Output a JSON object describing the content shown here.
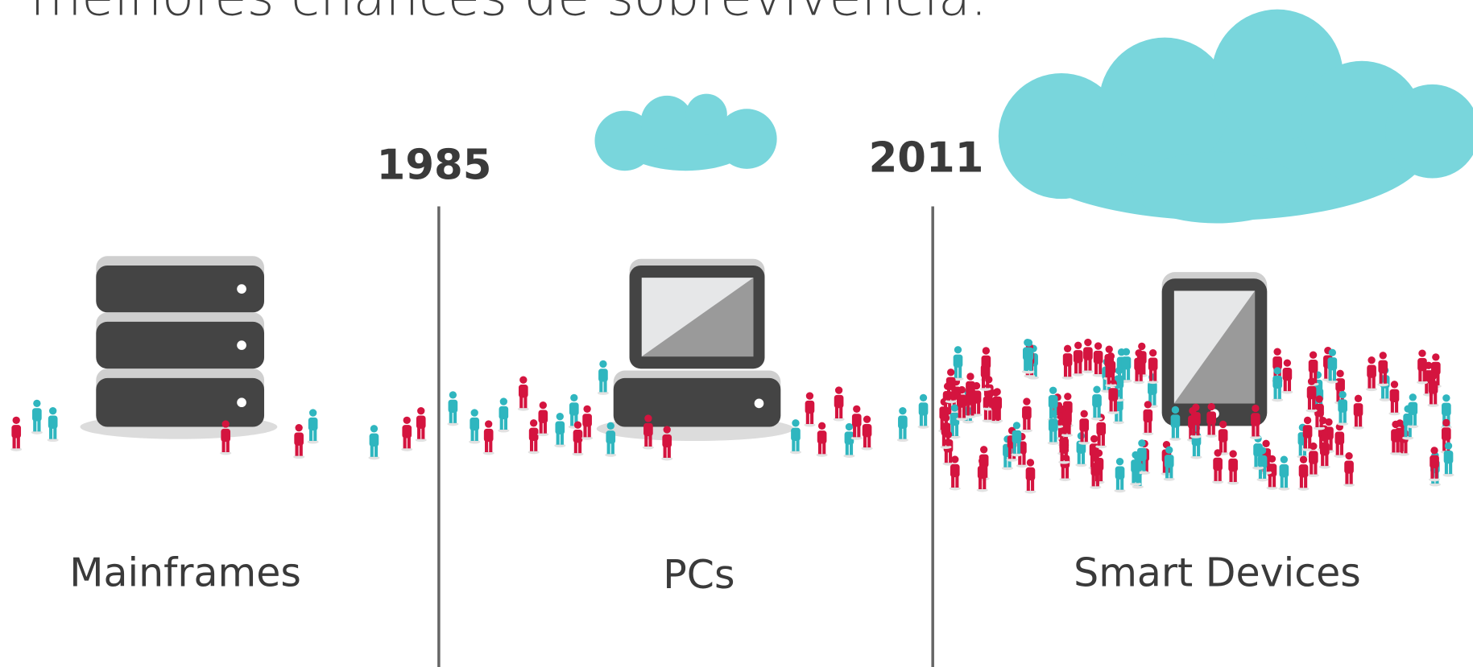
{
  "title": "melhores chances de sobrevivência.",
  "years": [
    "1985",
    "2011"
  ],
  "eras": [
    "Mainframes",
    "PCs",
    "Smart Devices"
  ]
}
